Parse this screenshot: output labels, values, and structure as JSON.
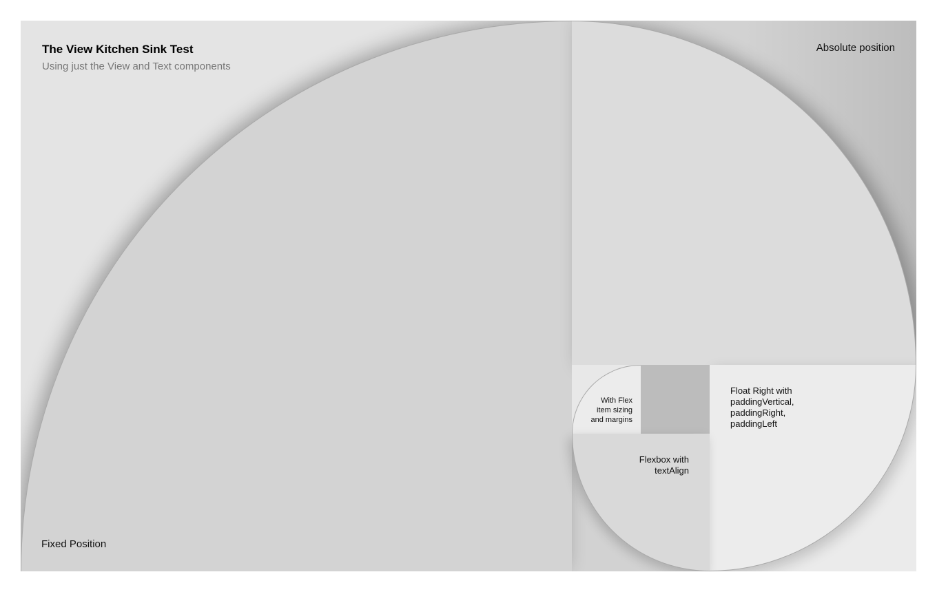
{
  "header": {
    "title": "The View Kitchen Sink Test",
    "subtitle": "Using just the View and Text components"
  },
  "labels": {
    "absolute": "Absolute position",
    "fixed": "Fixed Position",
    "float_right": "Float Right with\npaddingVertical,\npaddingRight,\npaddingLeft",
    "flexbox": "Flexbox with\ntextAlign",
    "with_flex": "With Flex\nitem sizing\nand margins"
  },
  "colors": {
    "frame": "#e4e4e4",
    "big_block": "#d3d3d3",
    "absolute_block": "#dcdcdc",
    "float_block": "#ececec",
    "flexbox_block": "#d9d9d9",
    "grey_square": "#bcbcbc",
    "subtitle_text": "#777777"
  }
}
